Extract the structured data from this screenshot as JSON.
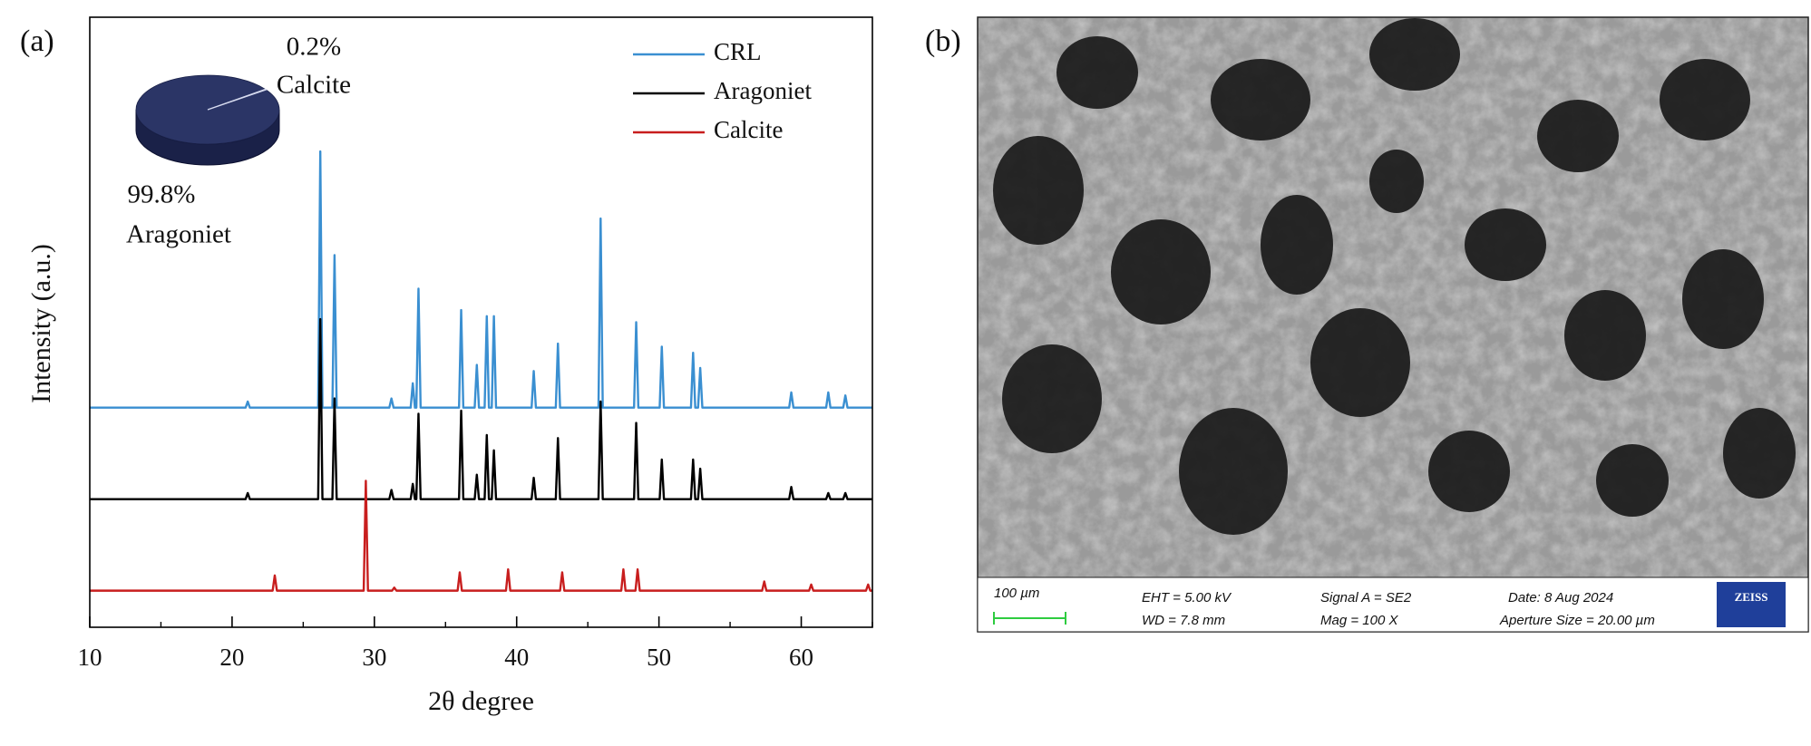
{
  "panel_labels": {
    "a": "(a)",
    "b": "(b)"
  },
  "chart_data": [
    {
      "type": "line",
      "x_label": "2θ degree",
      "y_label": "Intensity (a.u.)",
      "xlim": [
        10,
        65
      ],
      "xticks": [
        10,
        20,
        30,
        40,
        50,
        60
      ],
      "xminor_ticks": [
        15,
        25,
        35,
        45,
        55,
        65
      ],
      "ylim": [
        0,
        100
      ],
      "grid": false,
      "legend": "upper right",
      "series": [
        {
          "name": "CRL",
          "color": "#3a8fd1",
          "x": [
            10,
            20.95,
            21.1,
            21.25,
            26.05,
            26.2,
            26.35,
            27.05,
            27.2,
            27.35,
            31.05,
            31.2,
            31.35,
            32.55,
            32.7,
            32.85,
            32.95,
            33.1,
            33.25,
            35.95,
            36.1,
            36.25,
            37.05,
            37.2,
            37.35,
            37.75,
            37.9,
            38.05,
            38.25,
            38.4,
            38.55,
            41.05,
            41.2,
            41.35,
            42.75,
            42.9,
            43.05,
            45.75,
            45.9,
            46.05,
            48.25,
            48.4,
            48.55,
            50.05,
            50.2,
            50.35,
            52.25,
            52.4,
            52.55,
            52.75,
            52.9,
            53.05,
            59.15,
            59.3,
            59.45,
            61.75,
            61.9,
            62.05,
            62.95,
            63.1,
            63.25,
            65
          ],
          "values": [
            36,
            36,
            37,
            36,
            36,
            78,
            36,
            36,
            61,
            36,
            36,
            37.5,
            36,
            36,
            40,
            36,
            36,
            55.5,
            36,
            36,
            52,
            36,
            36,
            43,
            36,
            36,
            51,
            36,
            36,
            51,
            36,
            36,
            42,
            36,
            36,
            46.5,
            36,
            36,
            67,
            36,
            36,
            50,
            36,
            36,
            46,
            36,
            36,
            45,
            36,
            36,
            42.5,
            36,
            36,
            38.5,
            36,
            36,
            38.5,
            36,
            36,
            38,
            36,
            36
          ]
        },
        {
          "name": "Aragoniet",
          "color": "#000000",
          "x": [
            10,
            20.95,
            21.1,
            21.25,
            26.05,
            26.2,
            26.35,
            27.05,
            27.2,
            27.35,
            31.05,
            31.2,
            31.35,
            32.55,
            32.7,
            32.85,
            32.95,
            33.1,
            33.25,
            35.95,
            36.1,
            36.25,
            37.05,
            37.2,
            37.35,
            37.75,
            37.9,
            38.05,
            38.25,
            38.4,
            38.55,
            41.05,
            41.2,
            41.35,
            42.75,
            42.9,
            43.05,
            45.75,
            45.9,
            46.05,
            48.25,
            48.4,
            48.55,
            50.05,
            50.2,
            50.35,
            52.25,
            52.4,
            52.55,
            52.75,
            52.9,
            53.05,
            59.15,
            59.3,
            59.45,
            61.75,
            61.9,
            62.05,
            62.95,
            63.1,
            63.25,
            65
          ],
          "values": [
            21,
            21,
            22,
            21,
            21,
            50.5,
            21,
            21,
            37.5,
            21,
            21,
            22.5,
            21,
            21,
            23.5,
            21,
            21,
            35,
            21,
            21,
            35.5,
            21,
            21,
            25,
            21,
            21,
            31.5,
            21,
            21,
            29,
            21,
            21,
            24.5,
            21,
            21,
            31,
            21,
            21,
            37,
            21,
            21,
            33.5,
            21,
            21,
            27.5,
            21,
            21,
            27.5,
            21,
            21,
            26,
            21,
            21,
            23,
            21,
            21,
            22,
            21,
            21,
            22,
            21,
            21
          ]
        },
        {
          "name": "Calcite",
          "color": "#c81e1e",
          "x": [
            10,
            22.85,
            23,
            23.15,
            29.25,
            29.4,
            29.55,
            31.25,
            31.4,
            31.55,
            35.85,
            36,
            36.15,
            39.25,
            39.4,
            39.55,
            43.05,
            43.2,
            43.35,
            47.35,
            47.5,
            47.65,
            48.35,
            48.5,
            48.65,
            57.25,
            57.4,
            57.55,
            60.55,
            60.7,
            60.85,
            64.55,
            64.7,
            64.85,
            65
          ],
          "values": [
            6,
            6,
            8.5,
            6,
            6,
            24,
            6,
            6,
            6.5,
            6,
            6,
            9,
            6,
            6,
            9.5,
            6,
            6,
            9,
            6,
            6,
            9.5,
            6,
            6,
            9.5,
            6,
            6,
            7.5,
            6,
            6,
            7,
            6,
            6,
            7,
            6,
            6
          ]
        }
      ]
    },
    {
      "type": "pie",
      "categories": [
        "Aragoniet",
        "Calcite"
      ],
      "values": [
        99.8,
        0.2
      ],
      "value_labels": [
        "99.8%",
        "0.2%"
      ],
      "colors": [
        "#2b3566",
        "#6a75a8"
      ]
    }
  ],
  "sem_image": {
    "scale_bar": "100 µm",
    "eht": "EHT =  5.00 kV",
    "wd": "WD =  7.8 mm",
    "signal": "Signal A = SE2",
    "mag": "Mag =    100 X",
    "date": "Date: 8 Aug 2024",
    "aperture": "Aperture Size = 20.00 µm",
    "logo": "ZEISS"
  }
}
